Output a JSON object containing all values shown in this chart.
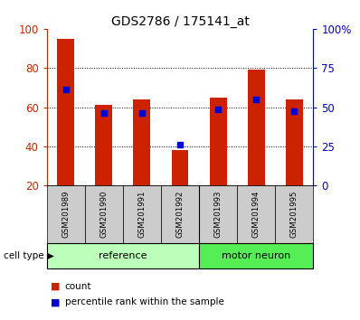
{
  "title": "GDS2786 / 175141_at",
  "samples": [
    "GSM201989",
    "GSM201990",
    "GSM201991",
    "GSM201992",
    "GSM201993",
    "GSM201994",
    "GSM201995"
  ],
  "count_values": [
    95,
    61,
    64,
    38,
    65,
    79,
    64
  ],
  "percentile_values": [
    69,
    57,
    57,
    41,
    59,
    64,
    58
  ],
  "y_min": 20,
  "y_max": 100,
  "y_ticks_left": [
    20,
    40,
    60,
    80,
    100
  ],
  "right_y_ticks": [
    0,
    25,
    50,
    75,
    100
  ],
  "right_y_labels": [
    "0",
    "25",
    "50",
    "75",
    "100%"
  ],
  "grid_lines": [
    40,
    60,
    80
  ],
  "bar_color": "#cc2200",
  "percentile_color": "#0000cc",
  "reference_color": "#bbffbb",
  "motor_neuron_color": "#55ee55",
  "sample_box_color": "#cccccc",
  "left_axis_color": "#cc2200",
  "right_axis_color": "#0000cc",
  "bar_width": 0.45,
  "ref_count": 4,
  "mn_count": 3,
  "legend_count_label": "count",
  "legend_percentile_label": "percentile rank within the sample",
  "cell_type_label": "cell type",
  "reference_label": "reference",
  "motor_neuron_label": "motor neuron"
}
